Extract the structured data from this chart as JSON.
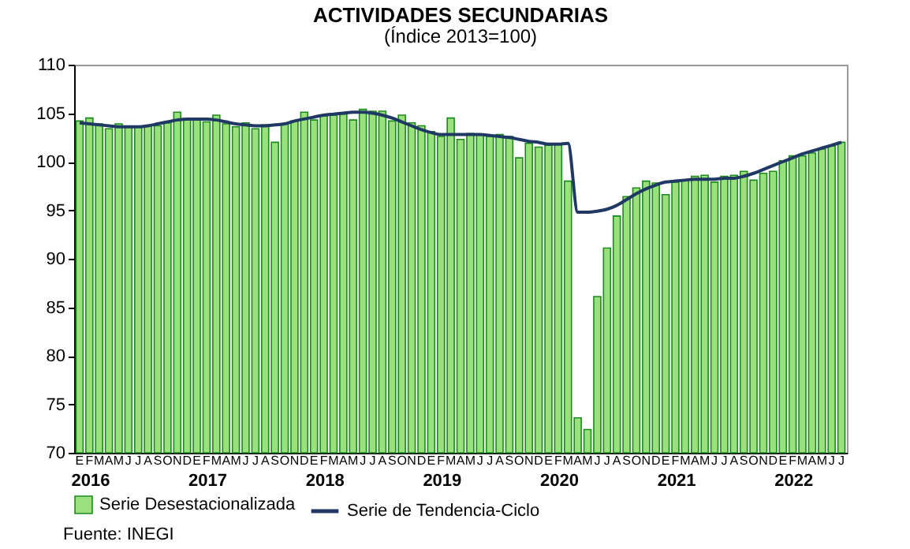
{
  "chart_data": {
    "type": "bar",
    "title": "ACTIVIDADES SECUNDARIAS",
    "subtitle": "(Índice 2013=100)",
    "categories": [
      "E",
      "F",
      "M",
      "A",
      "M",
      "J",
      "J",
      "A",
      "S",
      "O",
      "N",
      "D",
      "E",
      "F",
      "M",
      "A",
      "M",
      "J",
      "J",
      "A",
      "S",
      "O",
      "N",
      "D",
      "E",
      "F",
      "M",
      "A",
      "M",
      "J",
      "J",
      "A",
      "S",
      "O",
      "N",
      "D",
      "E",
      "F",
      "M",
      "A",
      "M",
      "J",
      "J",
      "A",
      "S",
      "O",
      "N",
      "D",
      "E",
      "F",
      "M",
      "A",
      "M",
      "J",
      "J",
      "A",
      "S",
      "O",
      "N",
      "D",
      "E",
      "F",
      "M",
      "A",
      "M",
      "J",
      "J",
      "A",
      "S",
      "O",
      "N",
      "D",
      "E",
      "F",
      "M",
      "A",
      "M",
      "J",
      "J"
    ],
    "series": [
      {
        "name": "Serie Desestacionalizada",
        "type": "bar",
        "color": "#9ae07c",
        "values": [
          104.2,
          104.5,
          103.9,
          103.4,
          103.9,
          103.6,
          103.6,
          103.7,
          103.7,
          104.0,
          105.1,
          104.4,
          104.4,
          104.1,
          104.8,
          103.9,
          103.6,
          104.0,
          103.4,
          103.8,
          102.0,
          103.9,
          104.2,
          105.1,
          104.3,
          104.7,
          104.8,
          104.9,
          104.3,
          105.4,
          105.2,
          105.2,
          104.2,
          104.8,
          104.0,
          103.7,
          103.1,
          102.6,
          104.5,
          102.3,
          102.9,
          102.8,
          102.6,
          102.8,
          102.6,
          100.4,
          101.9,
          101.5,
          101.7,
          101.8,
          98.0,
          73.6,
          72.4,
          86.1,
          91.1,
          94.4,
          96.4,
          97.3,
          98.0,
          97.8,
          96.6,
          97.9,
          98.1,
          98.5,
          98.6,
          97.9,
          98.5,
          98.6,
          99.0,
          98.1,
          98.8,
          99.0,
          100.1,
          100.6,
          100.6,
          100.9,
          101.3,
          101.6,
          102.0
        ]
      },
      {
        "name": "Serie de Tendencia-Ciclo",
        "type": "line",
        "color": "#1f3864",
        "values": [
          104.0,
          103.9,
          103.8,
          103.7,
          103.6,
          103.6,
          103.6,
          103.7,
          103.9,
          104.1,
          104.3,
          104.4,
          104.4,
          104.4,
          104.3,
          104.1,
          103.9,
          103.8,
          103.7,
          103.7,
          103.8,
          103.9,
          104.2,
          104.4,
          104.6,
          104.8,
          104.9,
          105.0,
          105.1,
          105.1,
          105.0,
          104.8,
          104.5,
          104.1,
          103.7,
          103.3,
          103.0,
          102.8,
          102.8,
          102.8,
          102.8,
          102.8,
          102.7,
          102.6,
          102.5,
          102.3,
          102.1,
          102.0,
          101.8,
          101.8,
          101.9,
          94.8,
          94.8,
          94.9,
          95.1,
          95.5,
          96.1,
          96.7,
          97.2,
          97.6,
          97.9,
          98.0,
          98.1,
          98.2,
          98.2,
          98.2,
          98.3,
          98.3,
          98.5,
          98.8,
          99.2,
          99.6,
          100.0,
          100.4,
          100.8,
          101.1,
          101.4,
          101.7,
          102.0
        ]
      }
    ],
    "ylim": [
      70,
      110
    ],
    "yticks": [
      70,
      75,
      80,
      85,
      90,
      95,
      100,
      105,
      110
    ],
    "annotations": [
      "2016",
      "2017",
      "2018",
      "2019",
      "2020",
      "2021",
      "2022",
      "Fuente: INEGI"
    ],
    "legend": "bottom",
    "grid": false
  }
}
